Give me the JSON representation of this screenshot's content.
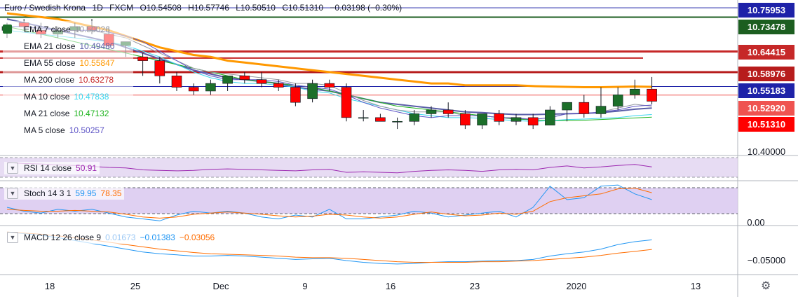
{
  "header": {
    "symbol": "Euro / Swedish Krona",
    "interval": "1D",
    "exchange": "FXCM",
    "open": "O10.54508",
    "high": "H10.57746",
    "low": "L10.50510",
    "close": "C10.51310",
    "change": "−0.03198 (−0.30%)"
  },
  "indicators": [
    {
      "label": "EMA 7 close",
      "value": "10.50026",
      "color": "#9598a1"
    },
    {
      "label": "EMA 21 close",
      "value": "10.49480",
      "color": "#5a5ea8"
    },
    {
      "label": "EMA 55 close",
      "value": "10.55847",
      "color": "#ff9800"
    },
    {
      "label": "MA 200 close",
      "value": "10.63278",
      "color": "#c62828"
    },
    {
      "label": "MA 10 close",
      "value": "10.47838",
      "color": "#38d6ee"
    },
    {
      "label": "MA 21 close",
      "value": "10.47132",
      "color": "#1fb41f"
    },
    {
      "label": "MA 5 close",
      "value": "10.50257",
      "color": "#5e55c6"
    }
  ],
  "rsi": {
    "label": "RSI 14 close",
    "value": "50.91",
    "color": "#9c27b0"
  },
  "stoch": {
    "label": "Stoch 14 3 1",
    "k": "59.95",
    "d": "78.35",
    "k_color": "#2196f3",
    "d_color": "#ff6d00",
    "zero_label": "0.00"
  },
  "macd": {
    "label": "MACD 12 26 close 9",
    "hist": "0.01673",
    "macd": "−0.01383",
    "signal": "−0.03056",
    "macd_color": "#2196f3",
    "signal_color": "#ff6d00",
    "level_label": "−0.05000"
  },
  "price_tags": [
    {
      "value": "10.75953",
      "bg": "#1e22a8"
    },
    {
      "value": "10.73478",
      "bg": "#1c5e20"
    },
    {
      "value": "10.64415",
      "bg": "#c62828"
    },
    {
      "value": "10.58976",
      "bg": "#b71c1c"
    },
    {
      "value": "10.55183",
      "bg": "#1e22a8"
    },
    {
      "value": "10.52920",
      "bg": "#ef5350"
    },
    {
      "value": "10.51310",
      "bg": "#ff0000"
    }
  ],
  "price_axis_plain": "10.40000",
  "x_ticks": [
    "18",
    "25",
    "Dec",
    "9",
    "16",
    "23",
    "2020",
    "13"
  ],
  "colors": {
    "up": "#1c6f2a",
    "down": "#ff0000",
    "background": "#ffffff"
  },
  "chart_data": {
    "type": "candlestick",
    "price_range": [
      10.37,
      10.78
    ],
    "candles": [
      {
        "o": 10.7,
        "h": 10.72,
        "l": 10.68,
        "c": 10.71
      },
      {
        "o": 10.72,
        "h": 10.73,
        "l": 10.7,
        "c": 10.71
      },
      {
        "o": 10.7,
        "h": 10.72,
        "l": 10.68,
        "c": 10.69
      },
      {
        "o": 10.69,
        "h": 10.71,
        "l": 10.68,
        "c": 10.7
      },
      {
        "o": 10.7,
        "h": 10.72,
        "l": 10.68,
        "c": 10.71
      },
      {
        "o": 10.71,
        "h": 10.73,
        "l": 10.69,
        "c": 10.7
      },
      {
        "o": 10.69,
        "h": 10.71,
        "l": 10.65,
        "c": 10.66
      },
      {
        "o": 10.66,
        "h": 10.67,
        "l": 10.63,
        "c": 10.67
      },
      {
        "o": 10.63,
        "h": 10.64,
        "l": 10.58,
        "c": 10.62
      },
      {
        "o": 10.62,
        "h": 10.63,
        "l": 10.56,
        "c": 10.58
      },
      {
        "o": 10.58,
        "h": 10.59,
        "l": 10.54,
        "c": 10.55
      },
      {
        "o": 10.55,
        "h": 10.56,
        "l": 10.53,
        "c": 10.54
      },
      {
        "o": 10.54,
        "h": 10.57,
        "l": 10.53,
        "c": 10.56
      },
      {
        "o": 10.56,
        "h": 10.58,
        "l": 10.54,
        "c": 10.58
      },
      {
        "o": 10.58,
        "h": 10.59,
        "l": 10.56,
        "c": 10.57
      },
      {
        "o": 10.57,
        "h": 10.59,
        "l": 10.55,
        "c": 10.56
      },
      {
        "o": 10.56,
        "h": 10.57,
        "l": 10.54,
        "c": 10.55
      },
      {
        "o": 10.55,
        "h": 10.56,
        "l": 10.5,
        "c": 10.51
      },
      {
        "o": 10.52,
        "h": 10.57,
        "l": 10.51,
        "c": 10.56
      },
      {
        "o": 10.56,
        "h": 10.57,
        "l": 10.54,
        "c": 10.55
      },
      {
        "o": 10.55,
        "h": 10.56,
        "l": 10.46,
        "c": 10.47
      },
      {
        "o": 10.47,
        "h": 10.49,
        "l": 10.46,
        "c": 10.47
      },
      {
        "o": 10.47,
        "h": 10.48,
        "l": 10.46,
        "c": 10.46
      },
      {
        "o": 10.46,
        "h": 10.47,
        "l": 10.44,
        "c": 10.46
      },
      {
        "o": 10.46,
        "h": 10.49,
        "l": 10.45,
        "c": 10.48
      },
      {
        "o": 10.48,
        "h": 10.5,
        "l": 10.47,
        "c": 10.49
      },
      {
        "o": 10.49,
        "h": 10.51,
        "l": 10.47,
        "c": 10.48
      },
      {
        "o": 10.48,
        "h": 10.49,
        "l": 10.44,
        "c": 10.45
      },
      {
        "o": 10.45,
        "h": 10.48,
        "l": 10.44,
        "c": 10.48
      },
      {
        "o": 10.48,
        "h": 10.49,
        "l": 10.45,
        "c": 10.46
      },
      {
        "o": 10.46,
        "h": 10.48,
        "l": 10.45,
        "c": 10.47
      },
      {
        "o": 10.47,
        "h": 10.48,
        "l": 10.44,
        "c": 10.45
      },
      {
        "o": 10.45,
        "h": 10.5,
        "l": 10.45,
        "c": 10.49
      },
      {
        "o": 10.49,
        "h": 10.51,
        "l": 10.46,
        "c": 10.51
      },
      {
        "o": 10.51,
        "h": 10.53,
        "l": 10.47,
        "c": 10.48
      },
      {
        "o": 10.48,
        "h": 10.55,
        "l": 10.47,
        "c": 10.5
      },
      {
        "o": 10.5,
        "h": 10.55,
        "l": 10.49,
        "c": 10.53
      },
      {
        "o": 10.53,
        "h": 10.57,
        "l": 10.52,
        "c": 10.545
      },
      {
        "o": 10.545,
        "h": 10.577,
        "l": 10.505,
        "c": 10.513
      }
    ],
    "lines": [
      {
        "name": "EMA 55 close",
        "values": [
          10.745,
          10.74,
          10.735,
          10.73,
          10.72,
          10.71,
          10.7,
          10.685,
          10.67,
          10.655,
          10.645,
          10.635,
          10.63,
          10.62,
          10.615,
          10.61,
          10.605,
          10.6,
          10.595,
          10.59,
          10.585,
          10.58,
          10.575,
          10.57,
          10.565,
          10.56,
          10.56,
          10.555,
          10.555,
          10.555,
          10.555,
          10.553,
          10.552,
          10.551,
          10.55,
          10.55,
          10.551,
          10.552,
          10.551
        ]
      },
      {
        "name": "EMA 21 close",
        "values": [
          10.73,
          10.72,
          10.71,
          10.7,
          10.69,
          10.68,
          10.67,
          10.655,
          10.64,
          10.625,
          10.61,
          10.595,
          10.585,
          10.575,
          10.57,
          10.565,
          10.56,
          10.55,
          10.545,
          10.54,
          10.53,
          10.52,
          10.51,
          10.505,
          10.5,
          10.495,
          10.49,
          10.485,
          10.483,
          10.48,
          10.478,
          10.478,
          10.479,
          10.48,
          10.481,
          10.483,
          10.487,
          10.492,
          10.495
        ]
      },
      {
        "name": "MA 21 close",
        "values": [
          10.71,
          10.7,
          10.69,
          10.68,
          10.67,
          10.66,
          10.65,
          10.64,
          10.63,
          10.62,
          10.61,
          10.6,
          10.59,
          10.58,
          10.57,
          10.565,
          10.56,
          10.555,
          10.55,
          10.54,
          10.53,
          10.52,
          10.51,
          10.5,
          10.495,
          10.49,
          10.485,
          10.48,
          10.475,
          10.47,
          10.466,
          10.464,
          10.462,
          10.462,
          10.463,
          10.465,
          10.467,
          10.469,
          10.471
        ]
      },
      {
        "name": "MA 10 close",
        "values": [
          10.7,
          10.695,
          10.69,
          10.685,
          10.68,
          10.675,
          10.67,
          10.66,
          10.645,
          10.63,
          10.61,
          10.59,
          10.575,
          10.565,
          10.56,
          10.56,
          10.555,
          10.55,
          10.54,
          10.535,
          10.52,
          10.51,
          10.5,
          10.49,
          10.48,
          10.475,
          10.47,
          10.47,
          10.468,
          10.465,
          10.462,
          10.46,
          10.462,
          10.465,
          10.466,
          10.468,
          10.47,
          10.475,
          10.478
        ]
      },
      {
        "name": "EMA 7 close",
        "values": [
          10.71,
          10.71,
          10.705,
          10.7,
          10.7,
          10.7,
          10.69,
          10.68,
          10.66,
          10.64,
          10.62,
          10.6,
          10.59,
          10.585,
          10.58,
          10.575,
          10.57,
          10.56,
          10.56,
          10.555,
          10.535,
          10.515,
          10.5,
          10.49,
          10.485,
          10.485,
          10.485,
          10.475,
          10.475,
          10.47,
          10.47,
          10.465,
          10.47,
          10.48,
          10.48,
          10.485,
          10.495,
          10.505,
          10.5
        ]
      },
      {
        "name": "MA 5 close",
        "values": [
          10.71,
          10.71,
          10.705,
          10.7,
          10.7,
          10.7,
          10.695,
          10.685,
          10.67,
          10.645,
          10.62,
          10.595,
          10.58,
          10.57,
          10.57,
          10.57,
          10.565,
          10.555,
          10.55,
          10.545,
          10.53,
          10.51,
          10.495,
          10.485,
          10.475,
          10.47,
          10.475,
          10.475,
          10.475,
          10.47,
          10.468,
          10.465,
          10.47,
          10.48,
          10.48,
          10.485,
          10.49,
          10.5,
          10.503
        ]
      }
    ],
    "horizontal_levels": [
      10.75953,
      10.73478,
      10.64415,
      10.58976,
      10.55183,
      10.5292
    ]
  }
}
